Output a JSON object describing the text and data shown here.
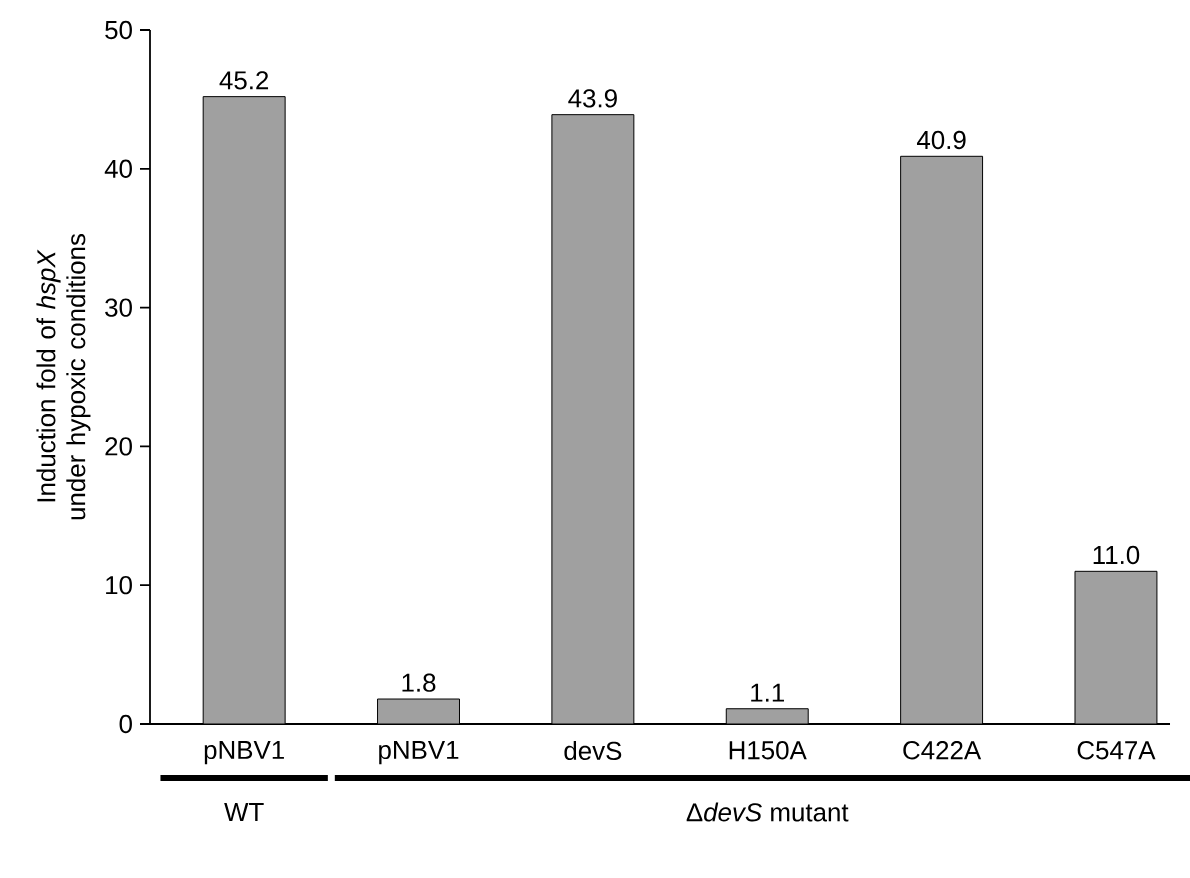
{
  "chart_data": {
    "type": "bar",
    "ylabel": "Induction fold of *hspX* under hypoxic conditions",
    "categories": [
      "pNBV1",
      "pNBV1",
      "devS",
      "H150A",
      "C422A",
      "C547A"
    ],
    "values": [
      45.2,
      1.8,
      43.9,
      1.1,
      40.9,
      11.0
    ],
    "value_labels": [
      "45.2",
      "1.8",
      "43.9",
      "1.1",
      "40.9",
      "11.0"
    ],
    "color": "#a0a0a0",
    "ylim": [
      0,
      50
    ],
    "yticks": [
      0,
      10,
      20,
      30,
      40,
      50
    ],
    "grid": false,
    "annotations": [
      "WT",
      "Δ",
      "*devS* mutant"
    ]
  }
}
